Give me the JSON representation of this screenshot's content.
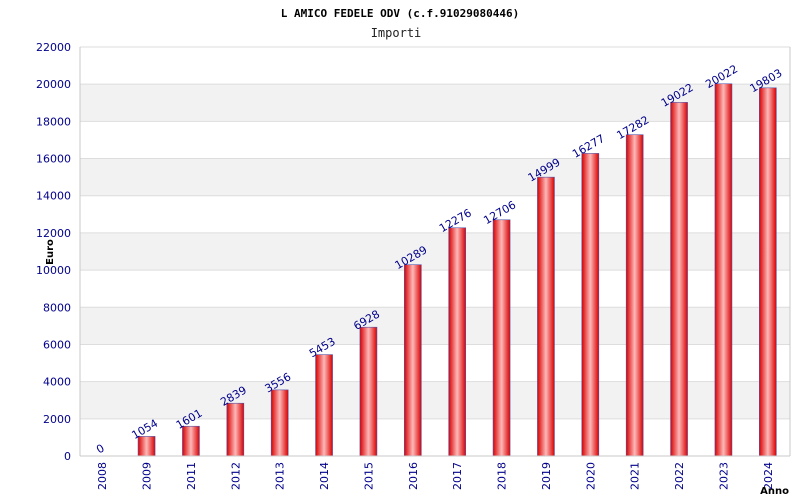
{
  "chart_data": {
    "type": "bar",
    "title": "L AMICO FEDELE ODV (c.f.91029080446)",
    "subtitle": "Importi",
    "xlabel": "Anno",
    "ylabel": "Euro",
    "categories": [
      "2008",
      "2009",
      "2011",
      "2012",
      "2013",
      "2014",
      "2015",
      "2016",
      "2017",
      "2018",
      "2019",
      "2020",
      "2021",
      "2022",
      "2023",
      "2024"
    ],
    "values": [
      0,
      1054,
      1601,
      2839,
      3556,
      5453,
      6928,
      10289,
      12276,
      12706,
      14999,
      16277,
      17282,
      19022,
      20022,
      19803
    ],
    "ylim": [
      0,
      22000
    ],
    "yticks": [
      0,
      2000,
      4000,
      6000,
      8000,
      10000,
      12000,
      14000,
      16000,
      18000,
      20000,
      22000
    ],
    "grid": true,
    "legend": "none",
    "colors": {
      "bar_center": "#ffb8b8",
      "bar_edge": "#d80000",
      "bar_outline": "#5555aa",
      "band": "#f2f2f2",
      "grid": "#dddddd",
      "axis": "#c8c8c8",
      "tick_text": "#00008b",
      "title_text": "#000000"
    }
  }
}
